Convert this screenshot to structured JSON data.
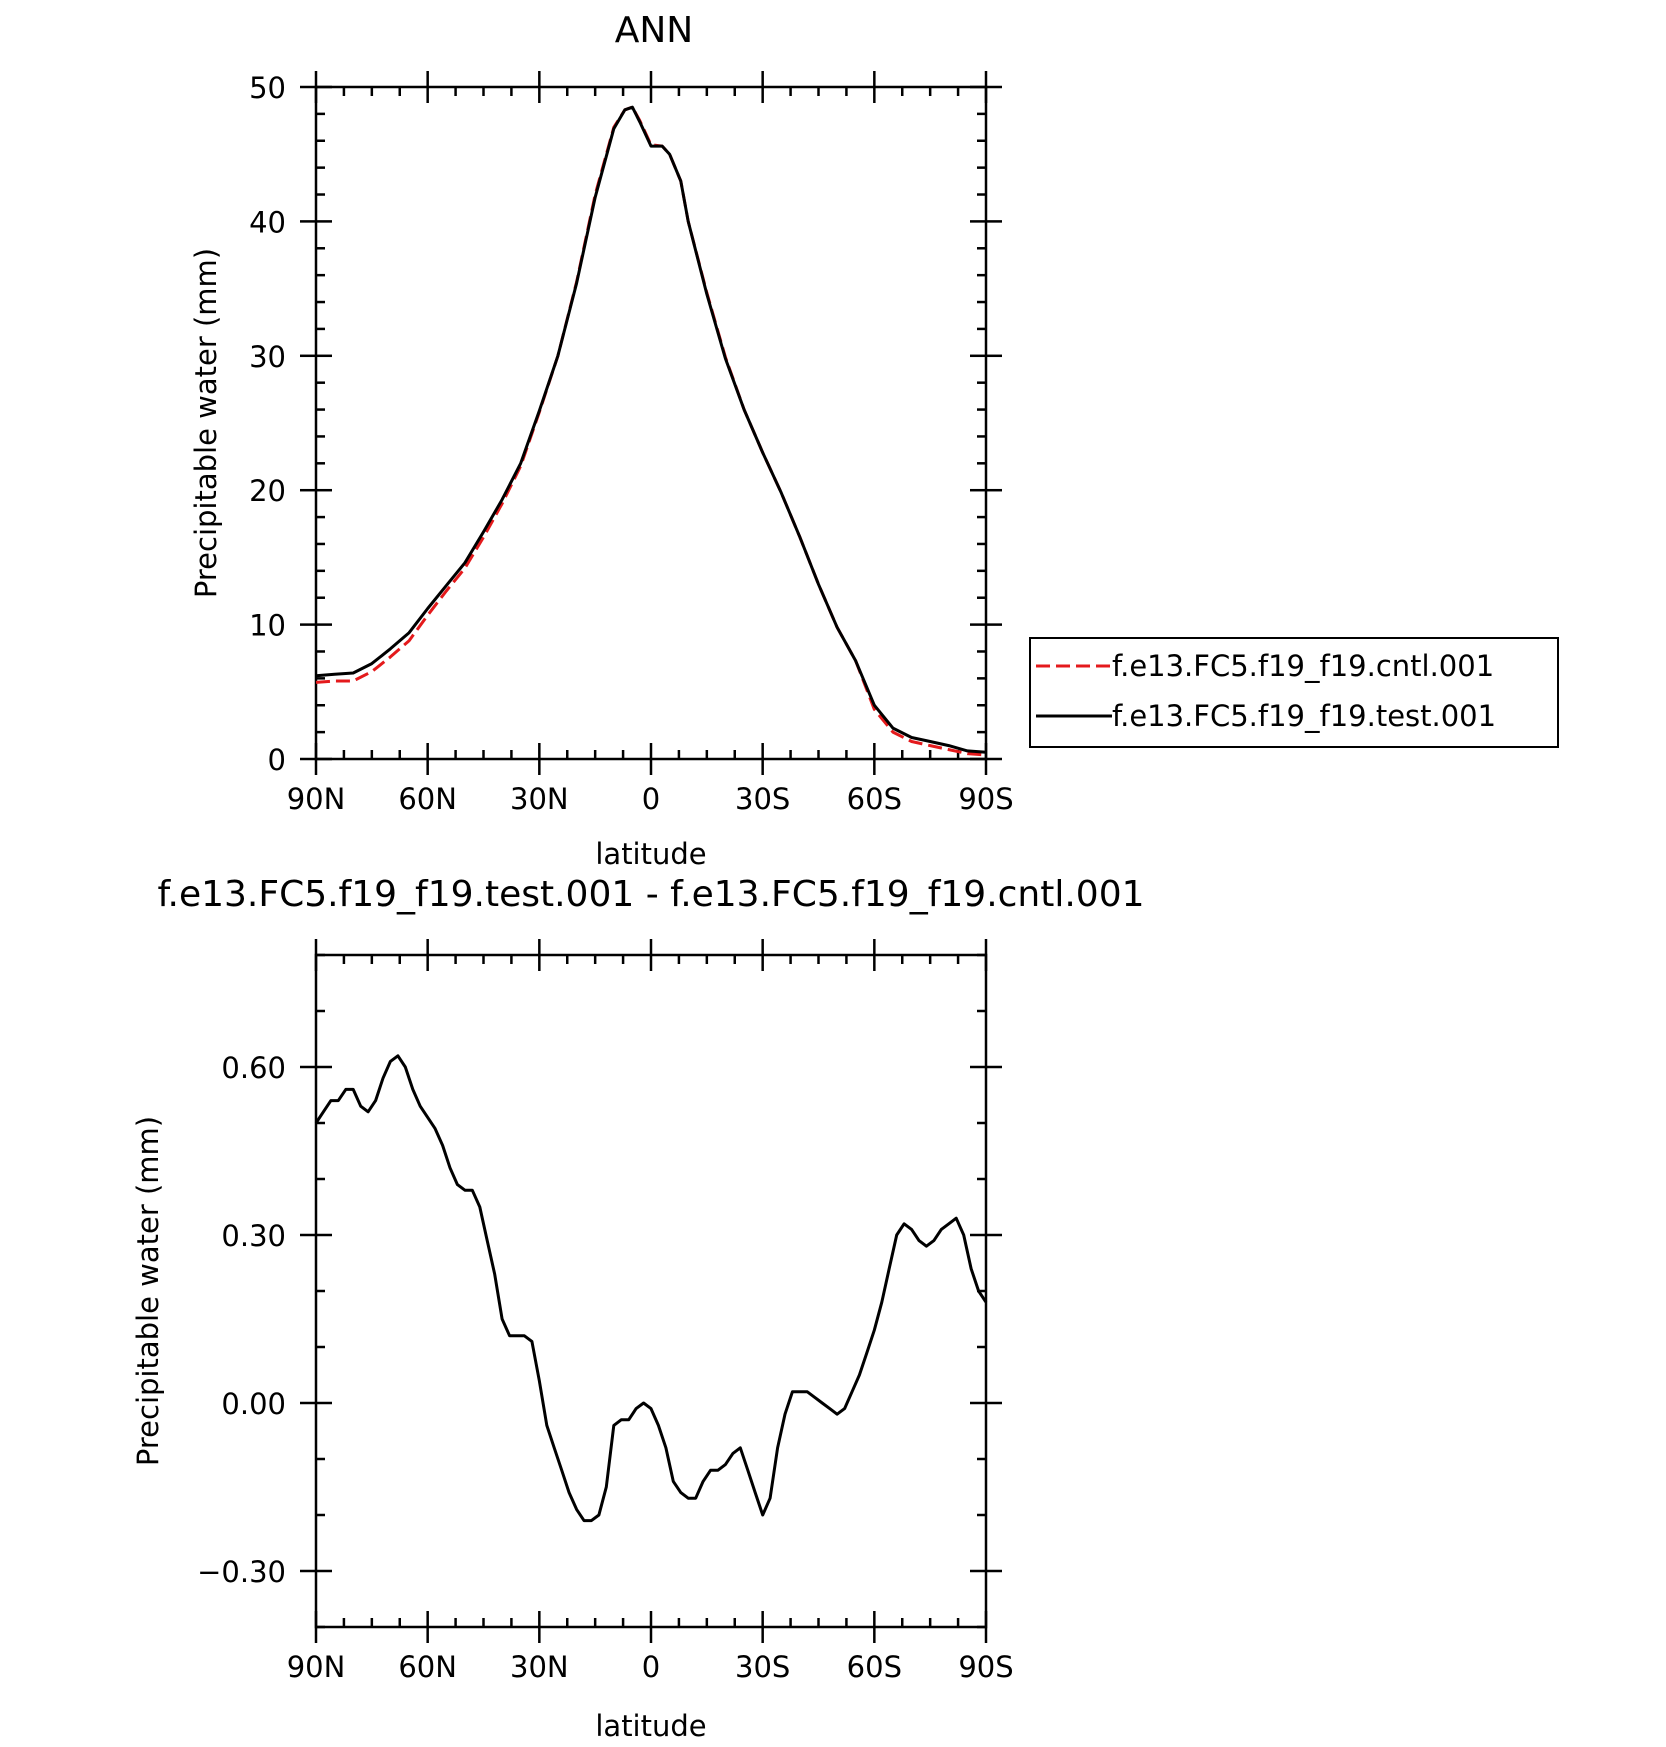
{
  "chart_data": [
    {
      "type": "line",
      "title": "ANN",
      "xlabel": "latitude",
      "ylabel": "Precipitable water (mm)",
      "xlim": [
        90,
        -90
      ],
      "ylim": [
        0,
        50
      ],
      "xticks": [
        90,
        60,
        30,
        0,
        -30,
        -60,
        -90
      ],
      "xtick_labels": [
        "90N",
        "60N",
        "30N",
        "0",
        "30S",
        "60S",
        "90S"
      ],
      "yticks": [
        0,
        10,
        20,
        30,
        40,
        50
      ],
      "ytick_labels": [
        "0",
        "10",
        "20",
        "30",
        "40",
        "50"
      ],
      "legend_position": "right",
      "series": [
        {
          "name": "f.e13.FC5.f19_f19.cntl.001",
          "color": "#e41a1c",
          "dash": "dashed",
          "x": [
            90,
            85,
            80,
            75,
            70,
            65,
            60,
            55,
            50,
            45,
            40,
            35,
            30,
            25,
            20,
            15,
            10,
            7,
            5,
            3,
            0,
            -3,
            -5,
            -8,
            -10,
            -15,
            -20,
            -25,
            -30,
            -35,
            -40,
            -45,
            -50,
            -55,
            -60,
            -65,
            -70,
            -75,
            -80,
            -85,
            -90
          ],
          "y": [
            5.7,
            5.8,
            5.8,
            6.5,
            7.6,
            8.8,
            10.7,
            12.5,
            14.2,
            16.5,
            19.0,
            21.8,
            25.8,
            30.0,
            35.5,
            42.0,
            47.0,
            48.3,
            48.5,
            47.5,
            45.7,
            45.6,
            45.0,
            43.0,
            40.0,
            34.7,
            29.9,
            26.0,
            22.8,
            19.8,
            16.5,
            13.0,
            9.8,
            7.3,
            3.7,
            2.0,
            1.3,
            1.0,
            0.7,
            0.4,
            0.3
          ]
        },
        {
          "name": "f.e13.FC5.f19_f19.test.001",
          "color": "#000000",
          "dash": "solid",
          "x": [
            90,
            85,
            80,
            75,
            70,
            65,
            60,
            55,
            50,
            45,
            40,
            35,
            30,
            25,
            20,
            15,
            10,
            7,
            5,
            3,
            0,
            -3,
            -5,
            -8,
            -10,
            -15,
            -20,
            -25,
            -30,
            -35,
            -40,
            -45,
            -50,
            -55,
            -60,
            -65,
            -70,
            -75,
            -80,
            -85,
            -90
          ],
          "y": [
            6.2,
            6.3,
            6.4,
            7.1,
            8.2,
            9.4,
            11.2,
            12.9,
            14.6,
            16.9,
            19.3,
            22.0,
            25.9,
            30.0,
            35.4,
            41.8,
            46.9,
            48.3,
            48.5,
            47.4,
            45.6,
            45.6,
            45.0,
            43.0,
            40.0,
            34.6,
            29.8,
            26.0,
            22.8,
            19.8,
            16.5,
            13.0,
            9.8,
            7.3,
            4.0,
            2.3,
            1.6,
            1.3,
            1.0,
            0.6,
            0.5
          ]
        }
      ]
    },
    {
      "type": "line",
      "title": "f.e13.FC5.f19_f19.test.001 - f.e13.FC5.f19_f19.cntl.001",
      "xlabel": "latitude",
      "ylabel": "Precipitable water (mm)",
      "xlim": [
        90,
        -90
      ],
      "ylim": [
        -0.4,
        0.8
      ],
      "xticks": [
        90,
        60,
        30,
        0,
        -30,
        -60,
        -90
      ],
      "xtick_labels": [
        "90N",
        "60N",
        "30N",
        "0",
        "30S",
        "60S",
        "90S"
      ],
      "yticks": [
        -0.3,
        0.0,
        0.3,
        0.6
      ],
      "ytick_labels": [
        "−0.30",
        "0.00",
        "0.30",
        "0.60"
      ],
      "series": [
        {
          "color": "#000000",
          "dash": "solid",
          "x": [
            90,
            88,
            86,
            84,
            82,
            80,
            78,
            76,
            74,
            72,
            70,
            68,
            66,
            64,
            62,
            60,
            58,
            56,
            54,
            52,
            50,
            48,
            46,
            44,
            42,
            40,
            38,
            36,
            34,
            32,
            30,
            28,
            26,
            24,
            22,
            20,
            18,
            16,
            14,
            12,
            10,
            8,
            6,
            4,
            2,
            0,
            -2,
            -4,
            -6,
            -8,
            -10,
            -12,
            -14,
            -16,
            -18,
            -20,
            -22,
            -24,
            -26,
            -28,
            -30,
            -32,
            -34,
            -36,
            -38,
            -40,
            -42,
            -44,
            -46,
            -48,
            -50,
            -52,
            -54,
            -56,
            -58,
            -60,
            -62,
            -64,
            -66,
            -68,
            -70,
            -72,
            -74,
            -76,
            -78,
            -80,
            -82,
            -84,
            -86,
            -88,
            -90
          ],
          "y": [
            0.5,
            0.52,
            0.54,
            0.54,
            0.56,
            0.56,
            0.53,
            0.52,
            0.54,
            0.58,
            0.61,
            0.62,
            0.6,
            0.56,
            0.53,
            0.51,
            0.49,
            0.46,
            0.42,
            0.39,
            0.38,
            0.38,
            0.35,
            0.29,
            0.23,
            0.15,
            0.12,
            0.12,
            0.12,
            0.11,
            0.04,
            -0.04,
            -0.08,
            -0.12,
            -0.16,
            -0.19,
            -0.21,
            -0.21,
            -0.2,
            -0.15,
            -0.04,
            -0.03,
            -0.03,
            -0.01,
            0.0,
            -0.01,
            -0.04,
            -0.08,
            -0.14,
            -0.16,
            -0.17,
            -0.17,
            -0.14,
            -0.12,
            -0.12,
            -0.11,
            -0.09,
            -0.08,
            -0.12,
            -0.16,
            -0.2,
            -0.17,
            -0.08,
            -0.02,
            0.02,
            0.02,
            0.02,
            0.01,
            0.0,
            -0.01,
            -0.02,
            -0.01,
            0.02,
            0.05,
            0.09,
            0.13,
            0.18,
            0.24,
            0.3,
            0.32,
            0.31,
            0.29,
            0.28,
            0.29,
            0.31,
            0.32,
            0.33,
            0.3,
            0.24,
            0.2,
            0.18
          ]
        }
      ]
    }
  ]
}
